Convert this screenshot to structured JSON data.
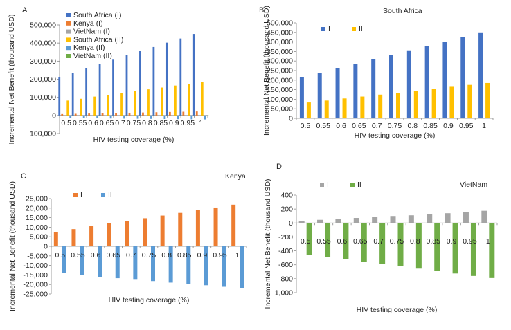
{
  "colors": {
    "sa1": "#4472C4",
    "ke1": "#ED7D31",
    "vn1": "#A5A5A5",
    "sa2": "#FFC000",
    "ke2": "#5B9BD5",
    "vn2": "#70AD47",
    "axis": "#888888",
    "text": "#222222"
  },
  "chart_data": [
    {
      "panel": "A",
      "type": "bar",
      "title": "",
      "xlabel": "HIV testing coverage (%)",
      "ylabel": "Incremental Net Benefit (thousand USD)",
      "categories": [
        "0.5",
        "0.55",
        "0.6",
        "0.65",
        "0.7",
        "0.75",
        "0.8",
        "0.85",
        "0.9",
        "0.95",
        "1"
      ],
      "ylim": [
        -100000,
        500000
      ],
      "yticks": [
        "-100,000",
        "0",
        "100,000",
        "200,000",
        "300,000",
        "400,000",
        "500,000"
      ],
      "legend_position": "top-left",
      "series": [
        {
          "name": "South Africa (I)",
          "color_key": "sa1",
          "values": [
            212000,
            235000,
            260000,
            285000,
            308000,
            332000,
            355000,
            378000,
            402000,
            425000,
            450000
          ]
        },
        {
          "name": "Kenya (I)",
          "color_key": "ke1",
          "values": [
            7500,
            9000,
            10500,
            12000,
            13500,
            14800,
            16100,
            17500,
            19000,
            20300,
            21800
          ]
        },
        {
          "name": "VietNam (I)",
          "color_key": "vn1",
          "values": [
            30,
            45,
            55,
            72,
            88,
            100,
            110,
            125,
            140,
            155,
            175
          ]
        },
        {
          "name": "South Africa (II)",
          "color_key": "sa2",
          "values": [
            82000,
            92000,
            104000,
            114000,
            124000,
            134000,
            144000,
            154000,
            165000,
            175000,
            185000
          ]
        },
        {
          "name": "Kenya (II)",
          "color_key": "ke2",
          "values": [
            -14000,
            -15200,
            -16000,
            -16800,
            -17600,
            -18300,
            -19000,
            -19800,
            -20500,
            -21300,
            -22000
          ]
        },
        {
          "name": "VietNam (II)",
          "color_key": "vn2",
          "values": [
            -450,
            -490,
            -520,
            -560,
            -590,
            -620,
            -660,
            -690,
            -720,
            -760,
            -790
          ]
        }
      ]
    },
    {
      "panel": "B",
      "type": "bar",
      "title": "South Africa",
      "xlabel": "HIV testing coverage (%)",
      "ylabel": "Incremental Net Benefit (thousand USD)",
      "categories": [
        "0.5",
        "0.55",
        "0.6",
        "0.65",
        "0.7",
        "0.75",
        "0.8",
        "0.85",
        "0.9",
        "0.95",
        "1"
      ],
      "ylim": [
        0,
        500000
      ],
      "yticks": [
        "0",
        "50,000",
        "100,000",
        "150,000",
        "200,000",
        "250,000",
        "300,000",
        "350,000",
        "400,000",
        "450,000",
        "500,000"
      ],
      "legend_position": "top-left",
      "series": [
        {
          "name": "I",
          "color_key": "sa1",
          "values": [
            215000,
            237000,
            263000,
            285000,
            308000,
            331000,
            356000,
            378000,
            401000,
            425000,
            450000
          ]
        },
        {
          "name": "II",
          "color_key": "sa2",
          "values": [
            83000,
            93000,
            104000,
            114000,
            124000,
            134000,
            144000,
            155000,
            165000,
            175000,
            185000
          ]
        }
      ]
    },
    {
      "panel": "C",
      "type": "bar",
      "title": "Kenya",
      "xlabel": "HIV testing coverage (%)",
      "ylabel": "Incremental Net Benefit (thousand USD)",
      "categories": [
        "0.5",
        "0.55",
        "0.6",
        "0.65",
        "0.7",
        "0.75",
        "0.8",
        "0.85",
        "0.9",
        "0.95",
        "1"
      ],
      "ylim": [
        -25000,
        25000
      ],
      "yticks": [
        "-25,000",
        "-20,000",
        "-15,000",
        "-10,000",
        "-5,000",
        "0",
        "5,000",
        "10,000",
        "15,000",
        "20,000",
        "25,000"
      ],
      "legend_position": "top-left",
      "series": [
        {
          "name": "I",
          "color_key": "ke1",
          "values": [
            7500,
            9000,
            10500,
            12000,
            13300,
            14700,
            16100,
            17500,
            19000,
            20300,
            21800
          ]
        },
        {
          "name": "II",
          "color_key": "ke2",
          "values": [
            -14000,
            -15000,
            -16000,
            -16700,
            -17500,
            -18200,
            -19000,
            -19700,
            -20400,
            -21200,
            -22000
          ]
        }
      ]
    },
    {
      "panel": "D",
      "type": "bar",
      "title": "VietNam",
      "xlabel": "HIV testing coverage (%)",
      "ylabel": "Incremental Net Benefit (thousand USD)",
      "categories": [
        "0.5",
        "0.55",
        "0.6",
        "0.65",
        "0.7",
        "0.75",
        "0.8",
        "0.85",
        "0.9",
        "0.95",
        "1"
      ],
      "ylim": [
        -1000,
        400
      ],
      "yticks": [
        "-1,000",
        "-800",
        "-600",
        "-400",
        "-200",
        "0",
        "200",
        "400"
      ],
      "legend_position": "top-left",
      "series": [
        {
          "name": "I",
          "color_key": "vn1",
          "values": [
            30,
            45,
            55,
            72,
            88,
            100,
            110,
            125,
            140,
            155,
            175
          ]
        },
        {
          "name": "II",
          "color_key": "vn2",
          "values": [
            -455,
            -485,
            -515,
            -555,
            -590,
            -620,
            -655,
            -690,
            -725,
            -760,
            -790
          ]
        }
      ]
    }
  ]
}
